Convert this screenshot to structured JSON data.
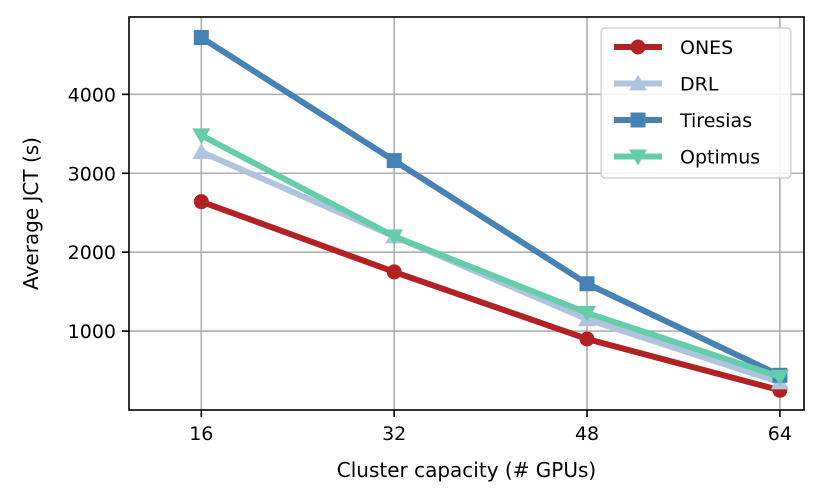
{
  "chart_data": {
    "type": "line",
    "title": "",
    "xlabel": "Cluster capacity (# GPUs)",
    "ylabel": "Average JCT (s)",
    "x": [
      16,
      32,
      48,
      64
    ],
    "x_tick_labels": [
      "16",
      "32",
      "48",
      "64"
    ],
    "xlim": [
      10,
      66
    ],
    "ylim": [
      0,
      4980
    ],
    "y_ticks": [
      1000,
      2000,
      3000,
      4000
    ],
    "y_tick_labels": [
      "1000",
      "2000",
      "3000",
      "4000"
    ],
    "grid": true,
    "legend_position": "top-right",
    "series": [
      {
        "name": "ONES",
        "color": "#b22222",
        "marker": "circle",
        "values": [
          2640,
          1750,
          900,
          250
        ]
      },
      {
        "name": "DRL",
        "color": "#b0c4de",
        "marker": "triangle-up",
        "values": [
          3270,
          2200,
          1150,
          350
        ]
      },
      {
        "name": "Tiresias",
        "color": "#4682b4",
        "marker": "square",
        "values": [
          4720,
          3160,
          1600,
          440
        ]
      },
      {
        "name": "Optimus",
        "color": "#66cdaa",
        "marker": "triangle-down",
        "values": [
          3480,
          2200,
          1230,
          420
        ]
      }
    ]
  }
}
